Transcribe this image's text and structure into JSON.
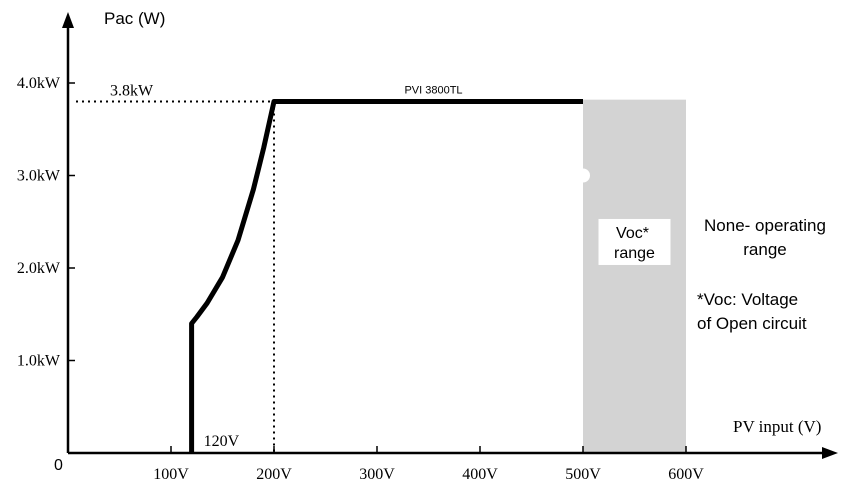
{
  "chart_data": {
    "type": "line",
    "ylabel": "Pac (W)",
    "xlabel": "PV input (V)",
    "origin_label": "0",
    "xlim": [
      0,
      740
    ],
    "ylim": [
      0,
      4.65
    ],
    "x_ticks": [
      {
        "value": 100,
        "label": "100V"
      },
      {
        "value": 200,
        "label": "200V"
      },
      {
        "value": 300,
        "label": "300V"
      },
      {
        "value": 400,
        "label": "400V"
      },
      {
        "value": 500,
        "label": "500V"
      },
      {
        "value": 600,
        "label": "600V"
      }
    ],
    "y_ticks": [
      {
        "value": 1.0,
        "label": "1.0kW"
      },
      {
        "value": 2.0,
        "label": "2.0kW"
      },
      {
        "value": 3.0,
        "label": "3.0kW"
      },
      {
        "value": 4.0,
        "label": "4.0kW"
      }
    ],
    "series": [
      {
        "name": "PVI 3800TL",
        "unit_x": "V",
        "unit_y": "kW",
        "points": [
          [
            120,
            0
          ],
          [
            120,
            1.4
          ],
          [
            125,
            1.47
          ],
          [
            135,
            1.62
          ],
          [
            150,
            1.9
          ],
          [
            165,
            2.3
          ],
          [
            180,
            2.85
          ],
          [
            190,
            3.3
          ],
          [
            200,
            3.8
          ],
          [
            500,
            3.8
          ]
        ]
      }
    ],
    "annotations": {
      "rated_power": {
        "label": "3.8kW",
        "y": 3.8,
        "x_start": 0,
        "x_end": 200
      },
      "start_voltage": {
        "label": "120V",
        "x": 120
      },
      "mppt_start_guide": {
        "x": 200,
        "y_from": 0,
        "y_to": 3.8
      },
      "voc_band": {
        "x_start": 500,
        "x_end": 600,
        "y_top": 3.82,
        "label_line1": "Voc*",
        "label_line2": "range",
        "color": "#d3d3d3"
      },
      "non_operating": {
        "line1": "None- operating",
        "line2": "range"
      },
      "footnote": {
        "line1": "*Voc: Voltage",
        "line2": "of Open circuit"
      }
    },
    "colors": {
      "curve": "#000000",
      "axis": "#000000",
      "band": "#d3d3d3"
    }
  }
}
